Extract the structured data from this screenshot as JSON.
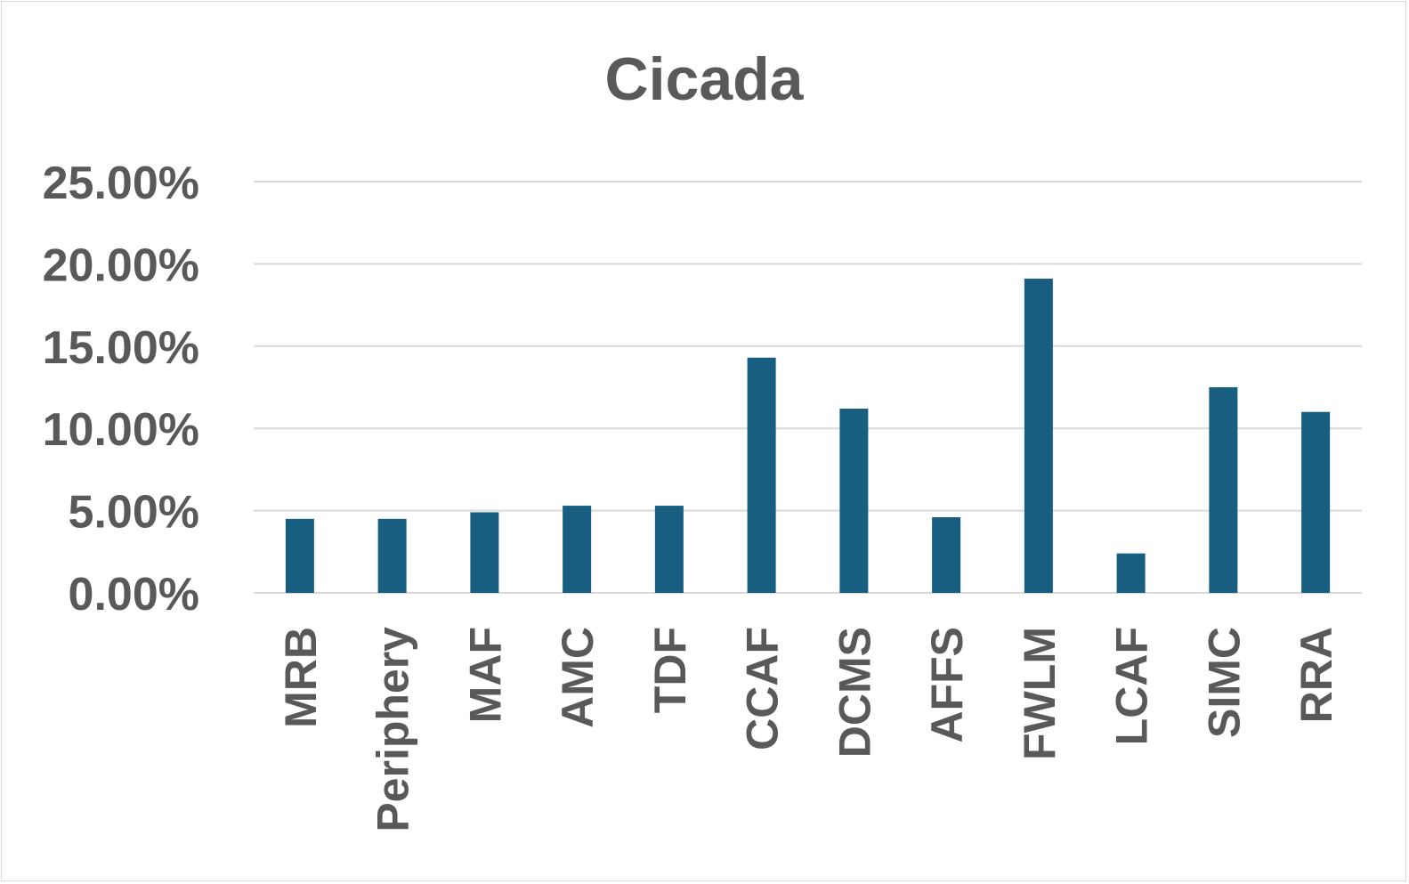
{
  "chart_data": {
    "type": "bar",
    "title": "Cicada",
    "xlabel": "",
    "ylabel": "",
    "categories": [
      "MRB",
      "Periphery",
      "MAF",
      "AMC",
      "TDF",
      "CCAF",
      "DCMS",
      "AFFS",
      "FWLM",
      "LCAF",
      "SIMC",
      "RRA"
    ],
    "values": [
      4.5,
      4.5,
      4.9,
      5.3,
      5.3,
      14.3,
      11.2,
      4.6,
      19.1,
      2.4,
      12.5,
      11.0
    ],
    "y_ticks": [
      "0.00%",
      "5.00%",
      "10.00%",
      "15.00%",
      "20.00%",
      "25.00%"
    ],
    "ylim": [
      0,
      25
    ],
    "grid": true,
    "legend": "none",
    "bar_color": "#175e81"
  }
}
